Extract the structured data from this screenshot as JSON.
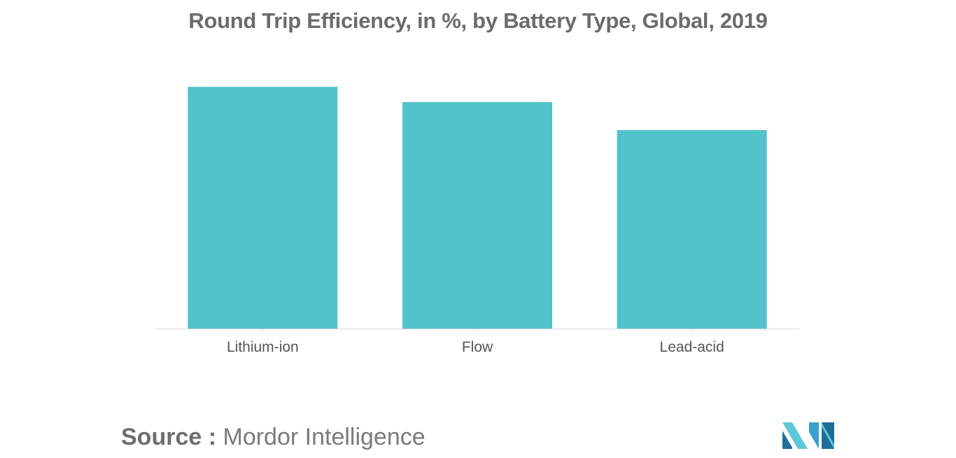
{
  "chart_data": {
    "type": "bar",
    "title": "Round Trip Efficiency, in %, by Battery Type, Global, 2019",
    "categories": [
      "Lithium-ion",
      "Flow",
      "Lead-acid"
    ],
    "values": [
      95,
      89,
      78
    ],
    "xlabel": "",
    "ylabel": "",
    "ylim": [
      0,
      100
    ],
    "grid": false,
    "legend": "none",
    "bar_color": "#52c3cb",
    "axis_color": "#d9d9d9",
    "tick_label_color": "#555555"
  },
  "source": {
    "label": "Source :",
    "name": "Mordor Intelligence"
  },
  "brand": {
    "logo_icon": "mordor-intelligence-logo-icon",
    "colors": [
      "#1f6e9a",
      "#3aa0cf",
      "#5ec8d8"
    ]
  }
}
